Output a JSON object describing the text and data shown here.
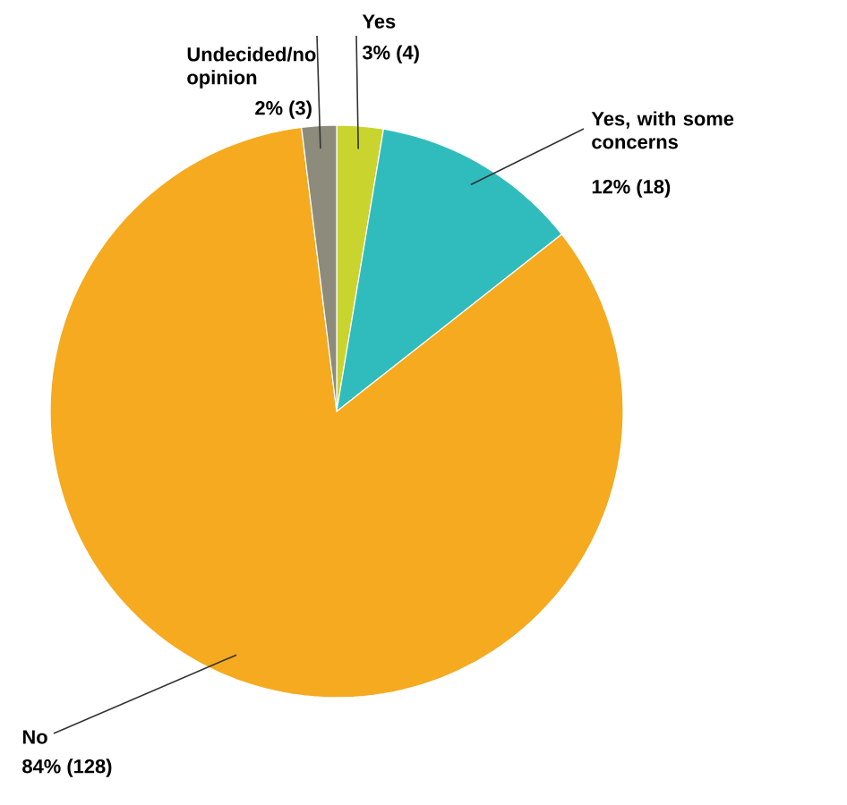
{
  "chart_data": {
    "type": "pie",
    "categories": [
      "Yes",
      "Yes, with some concerns",
      "No",
      "Undecided/no opinion"
    ],
    "values": [
      4,
      18,
      128,
      3
    ],
    "colors": [
      "#c9d42e",
      "#30bcbd",
      "#f5aa1f",
      "#8c8b7c"
    ],
    "value_labels": [
      "3% (4)",
      "12% (18)",
      "84% (128)",
      "2% (3)"
    ]
  }
}
